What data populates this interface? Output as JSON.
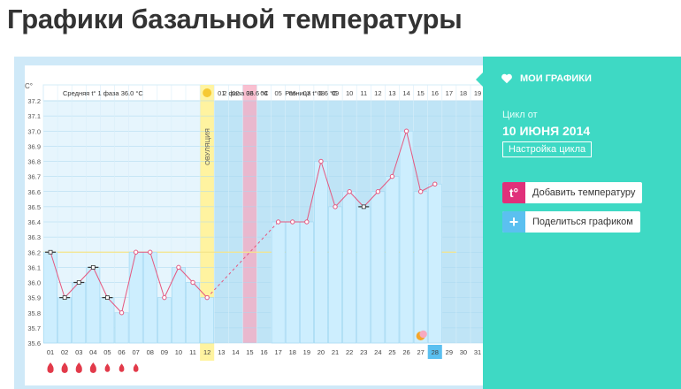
{
  "page": {
    "title": "Графики базальной температуры"
  },
  "chart": {
    "axis_unit": "C°",
    "phase1_label": "Средняя t° 1 фаза 36.0 °C",
    "phase2_label": "2 фаза 36.6 °C",
    "diff_label": "Разница t° 0.6 °C",
    "ovulation_label": "ОВУЛЯЦИЯ",
    "top_days": [
      "01",
      "02",
      "03",
      "04",
      "05",
      "06",
      "07",
      "08",
      "09",
      "10",
      "11",
      "12",
      "13",
      "14",
      "15",
      "16",
      "17",
      "18",
      "19"
    ],
    "top_days_start_col": 12,
    "y_ticks": [
      "37.2",
      "37.1",
      "37.0",
      "36.9",
      "36.8",
      "36.7",
      "36.6",
      "36.5",
      "36.4",
      "36.3",
      "36.2",
      "36.1",
      "36.0",
      "35.9",
      "35.8",
      "35.7",
      "35.6"
    ],
    "x_days": [
      "01",
      "02",
      "03",
      "04",
      "05",
      "06",
      "07",
      "08",
      "09",
      "10",
      "11",
      "12",
      "13",
      "14",
      "15",
      "16",
      "17",
      "18",
      "19",
      "20",
      "21",
      "22",
      "23",
      "24",
      "25",
      "26",
      "27",
      "28",
      "29",
      "30",
      "31"
    ],
    "colors": {
      "bar_fill": "#cdeefe",
      "bar_stroke": "#9fd7f2",
      "phase1_bg": "#ffffff",
      "ovulation": "#fff3a0",
      "highlight": "#f7aac0",
      "line": "#e5577f",
      "today": "#5bc0f0"
    },
    "highlight_day": 15,
    "today_day": 28,
    "ovulation_day": 12,
    "moon_icon_day": 27,
    "drop_days": [
      1,
      2,
      3,
      4,
      5,
      6,
      7
    ]
  },
  "chart_data": {
    "type": "line",
    "xlabel": "",
    "ylabel": "C°",
    "ylim": [
      35.6,
      37.2
    ],
    "categories": [
      "01",
      "02",
      "03",
      "04",
      "05",
      "06",
      "07",
      "08",
      "09",
      "10",
      "11",
      "12",
      "13",
      "14",
      "15",
      "16",
      "17",
      "18",
      "19",
      "20",
      "21",
      "22",
      "23",
      "24",
      "25",
      "26",
      "27",
      "28",
      "29",
      "30",
      "31"
    ],
    "series": [
      {
        "name": "",
        "x": [
          1,
          2,
          3,
          4,
          5,
          6,
          7,
          8,
          9,
          10,
          11,
          12,
          17,
          18,
          19,
          20,
          21,
          22,
          23,
          24,
          25,
          26,
          27,
          28
        ],
        "values": [
          36.2,
          35.9,
          36.0,
          36.1,
          35.9,
          35.8,
          36.2,
          36.2,
          35.9,
          36.1,
          36.0,
          35.9,
          36.4,
          36.4,
          36.4,
          36.8,
          36.5,
          36.6,
          36.5,
          36.6,
          36.7,
          37.0,
          36.6,
          36.65
        ],
        "markers": [
          "bar",
          "bar",
          "bar",
          "bar",
          "bar",
          "circle",
          "circle",
          "circle",
          "circle",
          "circle",
          "circle",
          "circle",
          "circle",
          "circle",
          "circle",
          "circle",
          "circle",
          "circle",
          "bar",
          "circle",
          "circle",
          "circle",
          "circle",
          "circle"
        ]
      }
    ],
    "coverline": 36.2,
    "dashed_segment_days": [
      12,
      17
    ],
    "annotations": [
      "Средняя t° 1 фаза 36.0 °C",
      "2 фаза 36.6 °C",
      "Разница t° 0.6 °C",
      "ОВУЛЯЦИЯ"
    ]
  },
  "sidebar": {
    "my_charts": "МОИ ГРАФИКИ",
    "cycle_from": "Цикл от",
    "cycle_date": "10 ИЮНЯ 2014",
    "settings": "Настройка цикла",
    "add_temp_icon": "t°",
    "add_temp": "Добавить температуру",
    "share_icon": "+",
    "share": "Поделиться графиком"
  }
}
